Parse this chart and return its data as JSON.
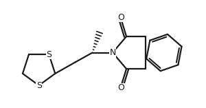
{
  "bg_color": "#ffffff",
  "line_color": "#1a1a1a",
  "line_width": 1.6,
  "figsize": [
    3.0,
    1.57
  ],
  "dpi": 100,
  "xlim": [
    0.3,
    8.8
  ],
  "ylim": [
    2.5,
    7.0
  ]
}
